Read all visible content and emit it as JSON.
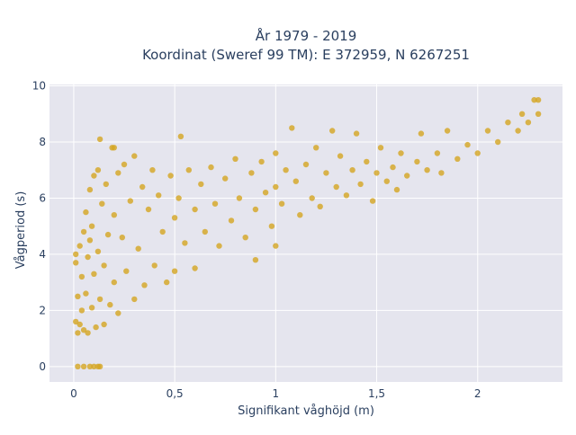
{
  "chart_data": {
    "type": "scatter",
    "title_lines": [
      "År 1979 - 2019",
      "Koordinat (Sweref 99 TM): E 372959, N 6267251"
    ],
    "xlabel": "Signifikant våghöjd (m)",
    "ylabel": "Vågperiod (s)",
    "xlim": [
      -0.12,
      2.42
    ],
    "ylim": [
      -0.55,
      10.05
    ],
    "x_ticks": [
      0,
      0.5,
      1,
      1.5,
      2
    ],
    "x_tick_labels": [
      "0",
      "0,5",
      "1",
      "1,5",
      "2"
    ],
    "y_ticks": [
      0,
      2,
      4,
      6,
      8,
      10
    ],
    "y_tick_labels": [
      "0",
      "2",
      "4",
      "6",
      "8",
      "10"
    ],
    "grid": true,
    "legend": "none",
    "plot_background": "#e5e5ee",
    "marker_color": "#d4a520",
    "marker_opacity": 0.8,
    "points": [
      [
        0.02,
        0.0
      ],
      [
        0.05,
        0.0
      ],
      [
        0.08,
        0.0
      ],
      [
        0.1,
        0.0
      ],
      [
        0.12,
        0.0
      ],
      [
        0.13,
        0.0
      ],
      [
        0.01,
        1.6
      ],
      [
        0.01,
        3.7
      ],
      [
        0.01,
        4.0
      ],
      [
        0.02,
        1.2
      ],
      [
        0.02,
        2.5
      ],
      [
        0.03,
        4.3
      ],
      [
        0.03,
        1.5
      ],
      [
        0.04,
        2.0
      ],
      [
        0.04,
        3.2
      ],
      [
        0.05,
        4.8
      ],
      [
        0.05,
        1.3
      ],
      [
        0.06,
        5.5
      ],
      [
        0.06,
        2.6
      ],
      [
        0.07,
        3.9
      ],
      [
        0.07,
        1.2
      ],
      [
        0.08,
        6.3
      ],
      [
        0.08,
        4.5
      ],
      [
        0.09,
        2.1
      ],
      [
        0.09,
        5.0
      ],
      [
        0.1,
        6.8
      ],
      [
        0.1,
        3.3
      ],
      [
        0.11,
        1.4
      ],
      [
        0.12,
        7.0
      ],
      [
        0.12,
        4.1
      ],
      [
        0.13,
        8.1
      ],
      [
        0.13,
        2.4
      ],
      [
        0.14,
        5.8
      ],
      [
        0.15,
        1.5
      ],
      [
        0.15,
        3.6
      ],
      [
        0.16,
        6.5
      ],
      [
        0.17,
        4.7
      ],
      [
        0.18,
        2.2
      ],
      [
        0.19,
        7.8
      ],
      [
        0.2,
        7.8
      ],
      [
        0.2,
        5.4
      ],
      [
        0.2,
        3.0
      ],
      [
        0.22,
        6.9
      ],
      [
        0.22,
        1.9
      ],
      [
        0.24,
        4.6
      ],
      [
        0.25,
        7.2
      ],
      [
        0.26,
        3.4
      ],
      [
        0.28,
        5.9
      ],
      [
        0.3,
        2.4
      ],
      [
        0.3,
        7.5
      ],
      [
        0.32,
        4.2
      ],
      [
        0.34,
        6.4
      ],
      [
        0.35,
        2.9
      ],
      [
        0.37,
        5.6
      ],
      [
        0.39,
        7.0
      ],
      [
        0.4,
        3.6
      ],
      [
        0.42,
        6.1
      ],
      [
        0.44,
        4.8
      ],
      [
        0.46,
        3.0
      ],
      [
        0.48,
        6.8
      ],
      [
        0.5,
        5.3
      ],
      [
        0.5,
        3.4
      ],
      [
        0.52,
        6.0
      ],
      [
        0.53,
        8.2
      ],
      [
        0.55,
        4.4
      ],
      [
        0.57,
        7.0
      ],
      [
        0.6,
        5.6
      ],
      [
        0.6,
        3.5
      ],
      [
        0.63,
        6.5
      ],
      [
        0.65,
        4.8
      ],
      [
        0.68,
        7.1
      ],
      [
        0.7,
        5.8
      ],
      [
        0.72,
        4.3
      ],
      [
        0.75,
        6.7
      ],
      [
        0.78,
        5.2
      ],
      [
        0.8,
        7.4
      ],
      [
        0.82,
        6.0
      ],
      [
        0.85,
        4.6
      ],
      [
        0.88,
        6.9
      ],
      [
        0.9,
        5.6
      ],
      [
        0.9,
        3.8
      ],
      [
        0.93,
        7.3
      ],
      [
        0.95,
        6.2
      ],
      [
        0.98,
        5.0
      ],
      [
        1.0,
        7.6
      ],
      [
        1.0,
        6.4
      ],
      [
        1.0,
        4.3
      ],
      [
        1.03,
        5.8
      ],
      [
        1.05,
        7.0
      ],
      [
        1.08,
        8.5
      ],
      [
        1.1,
        6.6
      ],
      [
        1.12,
        5.4
      ],
      [
        1.15,
        7.2
      ],
      [
        1.18,
        6.0
      ],
      [
        1.2,
        7.8
      ],
      [
        1.22,
        5.7
      ],
      [
        1.25,
        6.9
      ],
      [
        1.28,
        8.4
      ],
      [
        1.3,
        6.4
      ],
      [
        1.32,
        7.5
      ],
      [
        1.35,
        6.1
      ],
      [
        1.38,
        7.0
      ],
      [
        1.4,
        8.3
      ],
      [
        1.42,
        6.5
      ],
      [
        1.45,
        7.3
      ],
      [
        1.48,
        5.9
      ],
      [
        1.5,
        6.9
      ],
      [
        1.52,
        7.8
      ],
      [
        1.55,
        6.6
      ],
      [
        1.58,
        7.1
      ],
      [
        1.6,
        6.3
      ],
      [
        1.62,
        7.6
      ],
      [
        1.65,
        6.8
      ],
      [
        1.7,
        7.3
      ],
      [
        1.72,
        8.3
      ],
      [
        1.75,
        7.0
      ],
      [
        1.8,
        7.6
      ],
      [
        1.82,
        6.9
      ],
      [
        1.85,
        8.4
      ],
      [
        1.9,
        7.4
      ],
      [
        1.95,
        7.9
      ],
      [
        2.0,
        7.6
      ],
      [
        2.05,
        8.4
      ],
      [
        2.1,
        8.0
      ],
      [
        2.15,
        8.7
      ],
      [
        2.2,
        8.4
      ],
      [
        2.22,
        9.0
      ],
      [
        2.25,
        8.7
      ],
      [
        2.28,
        9.5
      ],
      [
        2.3,
        9.0
      ],
      [
        2.3,
        9.5
      ]
    ]
  }
}
